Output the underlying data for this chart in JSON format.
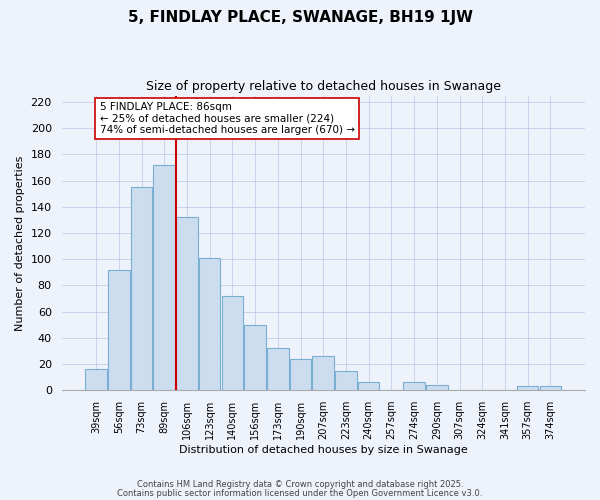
{
  "title": "5, FINDLAY PLACE, SWANAGE, BH19 1JW",
  "subtitle": "Size of property relative to detached houses in Swanage",
  "xlabel": "Distribution of detached houses by size in Swanage",
  "ylabel": "Number of detached properties",
  "bar_labels": [
    "39sqm",
    "56sqm",
    "73sqm",
    "89sqm",
    "106sqm",
    "123sqm",
    "140sqm",
    "156sqm",
    "173sqm",
    "190sqm",
    "207sqm",
    "223sqm",
    "240sqm",
    "257sqm",
    "274sqm",
    "290sqm",
    "307sqm",
    "324sqm",
    "341sqm",
    "357sqm",
    "374sqm"
  ],
  "bar_values": [
    16,
    92,
    155,
    172,
    132,
    101,
    72,
    50,
    32,
    24,
    26,
    15,
    6,
    0,
    6,
    4,
    0,
    0,
    0,
    3,
    3
  ],
  "bar_color": "#ccddf0",
  "bar_edge_color": "#7aafd4",
  "background_color": "#eef2fb",
  "grid_color": "#c0cfe8",
  "vline_x": 3.5,
  "vline_color": "#cc0000",
  "annotation_title": "5 FINDLAY PLACE: 86sqm",
  "annotation_line1": "← 25% of detached houses are smaller (224)",
  "annotation_line2": "74% of semi-detached houses are larger (670) →",
  "ylim": [
    0,
    225
  ],
  "yticks": [
    0,
    20,
    40,
    60,
    80,
    100,
    120,
    140,
    160,
    180,
    200,
    220
  ],
  "footer1": "Contains HM Land Registry data © Crown copyright and database right 2025.",
  "footer2": "Contains public sector information licensed under the Open Government Licence v3.0."
}
